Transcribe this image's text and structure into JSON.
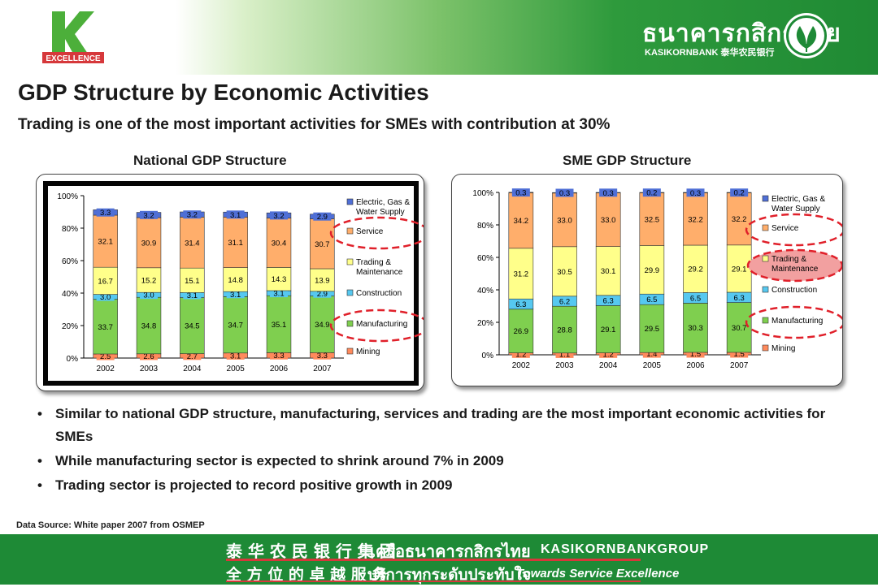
{
  "header": {
    "logo_text": "EXCELLENCE",
    "bank_thai": "ธนาคารกสิกรไทย",
    "bank_en": "KASIKORNBANK 泰华农民银行"
  },
  "title": "GDP Structure by Economic Activities",
  "subtitle": "Trading is one of the most important activities for SMEs with contribution at 30%",
  "colors": {
    "Electric": "#4f6fd6",
    "Service": "#ffae6b",
    "Trading": "#ffff8a",
    "Construction": "#56c8f0",
    "Manufacturing": "#7fcf4f",
    "Mining": "#ff8a5c",
    "highlight_oval": "#e0202a",
    "green": "#1e8a36"
  },
  "chart_data": [
    {
      "type": "bar",
      "stacked": true,
      "title": "National GDP Structure",
      "categories": [
        "2002",
        "2003",
        "2004",
        "2005",
        "2006",
        "2007"
      ],
      "y_ticks": [
        "0%",
        "20%",
        "40%",
        "60%",
        "80%",
        "100%"
      ],
      "ylim": [
        0,
        100
      ],
      "legend_position": "right",
      "series": [
        {
          "name": "Mining",
          "values": [
            2.5,
            2.6,
            2.7,
            3.1,
            3.3,
            3.3
          ]
        },
        {
          "name": "Manufacturing",
          "values": [
            33.7,
            34.8,
            34.5,
            34.7,
            35.1,
            34.9
          ]
        },
        {
          "name": "Construction",
          "values": [
            3.0,
            3.0,
            3.1,
            3.1,
            3.1,
            2.9
          ]
        },
        {
          "name": "Trading & Maintenance",
          "values": [
            16.7,
            15.2,
            15.1,
            14.8,
            14.3,
            13.9
          ]
        },
        {
          "name": "Service",
          "values": [
            32.1,
            30.9,
            31.4,
            31.1,
            30.4,
            30.7
          ]
        },
        {
          "name": "Electric, Gas & Water Supply",
          "values": [
            3.3,
            3.2,
            3.2,
            3.1,
            3.2,
            2.9
          ]
        }
      ],
      "legend_highlight": [
        "Service",
        "Manufacturing"
      ]
    },
    {
      "type": "bar",
      "stacked": true,
      "title": "SME GDP Structure",
      "categories": [
        "2002",
        "2003",
        "2004",
        "2005",
        "2006",
        "2007"
      ],
      "y_ticks": [
        "0%",
        "20%",
        "40%",
        "60%",
        "80%",
        "100%"
      ],
      "ylim": [
        0,
        100
      ],
      "legend_position": "right",
      "series": [
        {
          "name": "Mining",
          "values": [
            1.2,
            1.1,
            1.2,
            1.4,
            1.5,
            1.5
          ]
        },
        {
          "name": "Manufacturing",
          "values": [
            26.9,
            28.8,
            29.1,
            29.5,
            30.3,
            30.7
          ]
        },
        {
          "name": "Construction",
          "values": [
            6.3,
            6.2,
            6.3,
            6.5,
            6.5,
            6.3
          ]
        },
        {
          "name": "Trading & Maintenance",
          "values": [
            31.2,
            30.5,
            30.1,
            29.9,
            29.2,
            29.1
          ]
        },
        {
          "name": "Service",
          "values": [
            34.2,
            33.0,
            33.0,
            32.5,
            32.2,
            32.2
          ]
        },
        {
          "name": "Electric, Gas & Water Supply",
          "values": [
            0.3,
            0.3,
            0.3,
            0.2,
            0.3,
            0.2
          ]
        }
      ],
      "legend_highlight": [
        "Service",
        "Trading & Maintenance",
        "Manufacturing"
      ],
      "legend_filled": "Trading & Maintenance"
    }
  ],
  "legend_labels": {
    "Electric, Gas & Water Supply": [
      "Electric, Gas &",
      "Water Supply"
    ],
    "Service": [
      "Service"
    ],
    "Trading & Maintenance": [
      "Trading &",
      "Maintenance"
    ],
    "Construction": [
      "Construction"
    ],
    "Manufacturing": [
      "Manufacturing"
    ],
    "Mining": [
      "Mining"
    ]
  },
  "bullets": [
    "Similar to national GDP structure, manufacturing, services and trading are the most important economic activities for SMEs",
    "While manufacturing sector is expected to shrink around 7% in 2009",
    "Trading sector is projected to record positive growth in 2009"
  ],
  "source": "Data Source: White paper 2007 from OSMEP",
  "footer": {
    "chinese_1": "泰 华 农 民 银 行 集 团",
    "thai_1": "เครือธนาคารกสิกรไทย",
    "en_1": "KASIKORNBANKGROUP",
    "chinese_2": "全 方 位 的 卓 越 服 务",
    "thai_2": "บริการทุกระดับประทับใจ",
    "en_2": "Towards Service Excellence"
  }
}
